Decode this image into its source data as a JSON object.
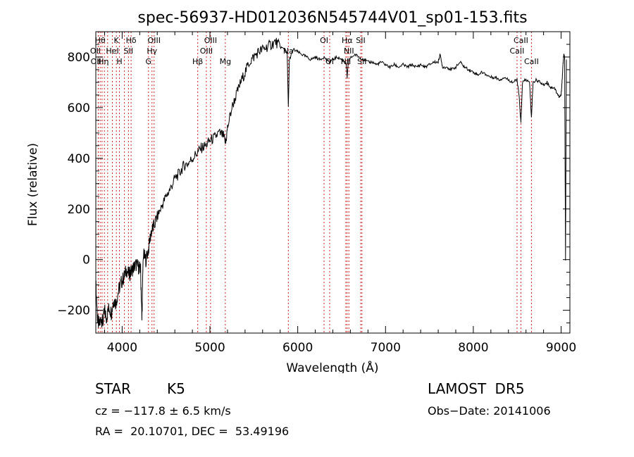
{
  "chart_data": {
    "type": "line",
    "title": "spec-56937-HD012036N545744V01_sp01-153.fits",
    "xlabel": "Wavelength (Å)",
    "ylabel": "Flux (relative)",
    "xlim": [
      3700,
      9100
    ],
    "ylim": [
      -290,
      900
    ],
    "x_ticks": [
      4000,
      5000,
      6000,
      7000,
      8000,
      9000
    ],
    "y_ticks": [
      -200,
      0,
      200,
      400,
      600,
      800
    ],
    "grid": false,
    "series": [
      {
        "points": [
          [
            3700,
            -90
          ],
          [
            3720,
            -240
          ],
          [
            3740,
            -260
          ],
          [
            3760,
            -230
          ],
          [
            3780,
            -250
          ],
          [
            3800,
            -200
          ],
          [
            3820,
            -230
          ],
          [
            3850,
            -190
          ],
          [
            3880,
            -210
          ],
          [
            3900,
            -160
          ],
          [
            3930,
            -170
          ],
          [
            3960,
            -120
          ],
          [
            3990,
            -90
          ],
          [
            4020,
            -70
          ],
          [
            4050,
            -40
          ],
          [
            4080,
            -60
          ],
          [
            4100,
            -50
          ],
          [
            4130,
            -30
          ],
          [
            4160,
            -20
          ],
          [
            4190,
            -30
          ],
          [
            4210,
            -40
          ],
          [
            4225,
            -240
          ],
          [
            4240,
            20
          ],
          [
            4270,
            0
          ],
          [
            4300,
            40
          ],
          [
            4330,
            110
          ],
          [
            4360,
            130
          ],
          [
            4400,
            170
          ],
          [
            4450,
            210
          ],
          [
            4500,
            250
          ],
          [
            4550,
            280
          ],
          [
            4600,
            320
          ],
          [
            4650,
            340
          ],
          [
            4700,
            370
          ],
          [
            4750,
            380
          ],
          [
            4800,
            400
          ],
          [
            4850,
            420
          ],
          [
            4900,
            440
          ],
          [
            4950,
            450
          ],
          [
            5000,
            470
          ],
          [
            5050,
            480
          ],
          [
            5100,
            500
          ],
          [
            5150,
            490
          ],
          [
            5180,
            460
          ],
          [
            5200,
            520
          ],
          [
            5250,
            600
          ],
          [
            5300,
            650
          ],
          [
            5350,
            700
          ],
          [
            5400,
            740
          ],
          [
            5450,
            780
          ],
          [
            5500,
            800
          ],
          [
            5550,
            820
          ],
          [
            5600,
            830
          ],
          [
            5650,
            840
          ],
          [
            5700,
            850
          ],
          [
            5750,
            860
          ],
          [
            5800,
            840
          ],
          [
            5850,
            830
          ],
          [
            5880,
            810
          ],
          [
            5893,
            600
          ],
          [
            5905,
            790
          ],
          [
            5950,
            830
          ],
          [
            6000,
            820
          ],
          [
            6050,
            810
          ],
          [
            6100,
            800
          ],
          [
            6150,
            790
          ],
          [
            6200,
            800
          ],
          [
            6250,
            790
          ],
          [
            6300,
            800
          ],
          [
            6350,
            780
          ],
          [
            6400,
            790
          ],
          [
            6450,
            800
          ],
          [
            6500,
            790
          ],
          [
            6550,
            780
          ],
          [
            6563,
            720
          ],
          [
            6580,
            790
          ],
          [
            6650,
            810
          ],
          [
            6700,
            800
          ],
          [
            6750,
            790
          ],
          [
            6800,
            780
          ],
          [
            6850,
            780
          ],
          [
            6900,
            770
          ],
          [
            6950,
            780
          ],
          [
            7000,
            770
          ],
          [
            7050,
            760
          ],
          [
            7100,
            770
          ],
          [
            7150,
            760
          ],
          [
            7200,
            770
          ],
          [
            7250,
            760
          ],
          [
            7300,
            770
          ],
          [
            7350,
            760
          ],
          [
            7400,
            770
          ],
          [
            7450,
            760
          ],
          [
            7500,
            770
          ],
          [
            7550,
            780
          ],
          [
            7600,
            780
          ],
          [
            7620,
            810
          ],
          [
            7650,
            760
          ],
          [
            7700,
            760
          ],
          [
            7750,
            750
          ],
          [
            7800,
            760
          ],
          [
            7850,
            780
          ],
          [
            7900,
            760
          ],
          [
            7950,
            750
          ],
          [
            8000,
            740
          ],
          [
            8050,
            730
          ],
          [
            8100,
            740
          ],
          [
            8150,
            730
          ],
          [
            8200,
            720
          ],
          [
            8250,
            720
          ],
          [
            8300,
            710
          ],
          [
            8350,
            720
          ],
          [
            8400,
            710
          ],
          [
            8450,
            700
          ],
          [
            8498,
            710
          ],
          [
            8520,
            650
          ],
          [
            8542,
            540
          ],
          [
            8560,
            700
          ],
          [
            8600,
            710
          ],
          [
            8640,
            700
          ],
          [
            8662,
            560
          ],
          [
            8680,
            700
          ],
          [
            8720,
            710
          ],
          [
            8760,
            700
          ],
          [
            8800,
            690
          ],
          [
            8840,
            700
          ],
          [
            8880,
            680
          ],
          [
            8920,
            680
          ],
          [
            8950,
            660
          ],
          [
            8980,
            640
          ],
          [
            9000,
            650
          ],
          [
            9010,
            700
          ],
          [
            9020,
            760
          ],
          [
            9030,
            810
          ],
          [
            9040,
            800
          ],
          [
            9050,
            0
          ],
          [
            9060,
            790
          ]
        ]
      }
    ],
    "lines": [
      {
        "wl": 3728,
        "label": "OII",
        "row": 1,
        "dx": -4
      },
      {
        "wl": 3750,
        "label": "OII",
        "row": 2,
        "dx": -6
      },
      {
        "wl": 3771,
        "label": "Hη",
        "row": 2,
        "dx": 2
      },
      {
        "wl": 3798,
        "label": "Hθ",
        "row": 0,
        "dx": -6
      },
      {
        "wl": 3835,
        "label": "",
        "row": 0,
        "dx": 0
      },
      {
        "wl": 3889,
        "label": "HeI",
        "row": 1,
        "dx": 0
      },
      {
        "wl": 3934,
        "label": "K",
        "row": 0,
        "dx": 0
      },
      {
        "wl": 3969,
        "label": "H",
        "row": 2,
        "dx": 0
      },
      {
        "wl": 4026,
        "label": "",
        "row": 0,
        "dx": 0
      },
      {
        "wl": 4072,
        "label": "SII",
        "row": 1,
        "dx": 0
      },
      {
        "wl": 4102,
        "label": "Hδ",
        "row": 0,
        "dx": 0
      },
      {
        "wl": 4300,
        "label": "G",
        "row": 2,
        "dx": 0
      },
      {
        "wl": 4340,
        "label": "Hγ",
        "row": 1,
        "dx": 0
      },
      {
        "wl": 4364,
        "label": "OIII",
        "row": 0,
        "dx": 0
      },
      {
        "wl": 4861,
        "label": "Hβ",
        "row": 2,
        "dx": 0
      },
      {
        "wl": 4959,
        "label": "OIII",
        "row": 1,
        "dx": 0
      },
      {
        "wl": 5007,
        "label": "OIII",
        "row": 0,
        "dx": 0
      },
      {
        "wl": 5175,
        "label": "Mg",
        "row": 2,
        "dx": 0
      },
      {
        "wl": 5893,
        "label": "Na",
        "row": 1,
        "dx": 0
      },
      {
        "wl": 6300,
        "label": "OI",
        "row": 0,
        "dx": 0
      },
      {
        "wl": 6364,
        "label": "OI",
        "row": 2,
        "dx": 0
      },
      {
        "wl": 6548,
        "label": "NII",
        "row": 2,
        "dx": 0
      },
      {
        "wl": 6563,
        "label": "Hα",
        "row": 0,
        "dx": 0
      },
      {
        "wl": 6583,
        "label": "NII",
        "row": 1,
        "dx": 0
      },
      {
        "wl": 6717,
        "label": "SII",
        "row": 0,
        "dx": 0
      },
      {
        "wl": 6731,
        "label": "SII",
        "row": 2,
        "dx": 0
      },
      {
        "wl": 8498,
        "label": "CaII",
        "row": 1,
        "dx": 0
      },
      {
        "wl": 8542,
        "label": "CaII",
        "row": 0,
        "dx": 0
      },
      {
        "wl": 8662,
        "label": "CaII",
        "row": 2,
        "dx": 0
      }
    ]
  },
  "info": {
    "class_label": "STAR",
    "subclass": "K5",
    "survey": "LAMOST DR5",
    "cz": "cz = −117.8 ± 6.5 km/s",
    "obs_date": "Obs−Date: 20141006",
    "radec": "RA =  20.10701, DEC =  53.49196"
  },
  "colors": {
    "line_marker": "#cc2222",
    "spectrum": "#000000"
  }
}
